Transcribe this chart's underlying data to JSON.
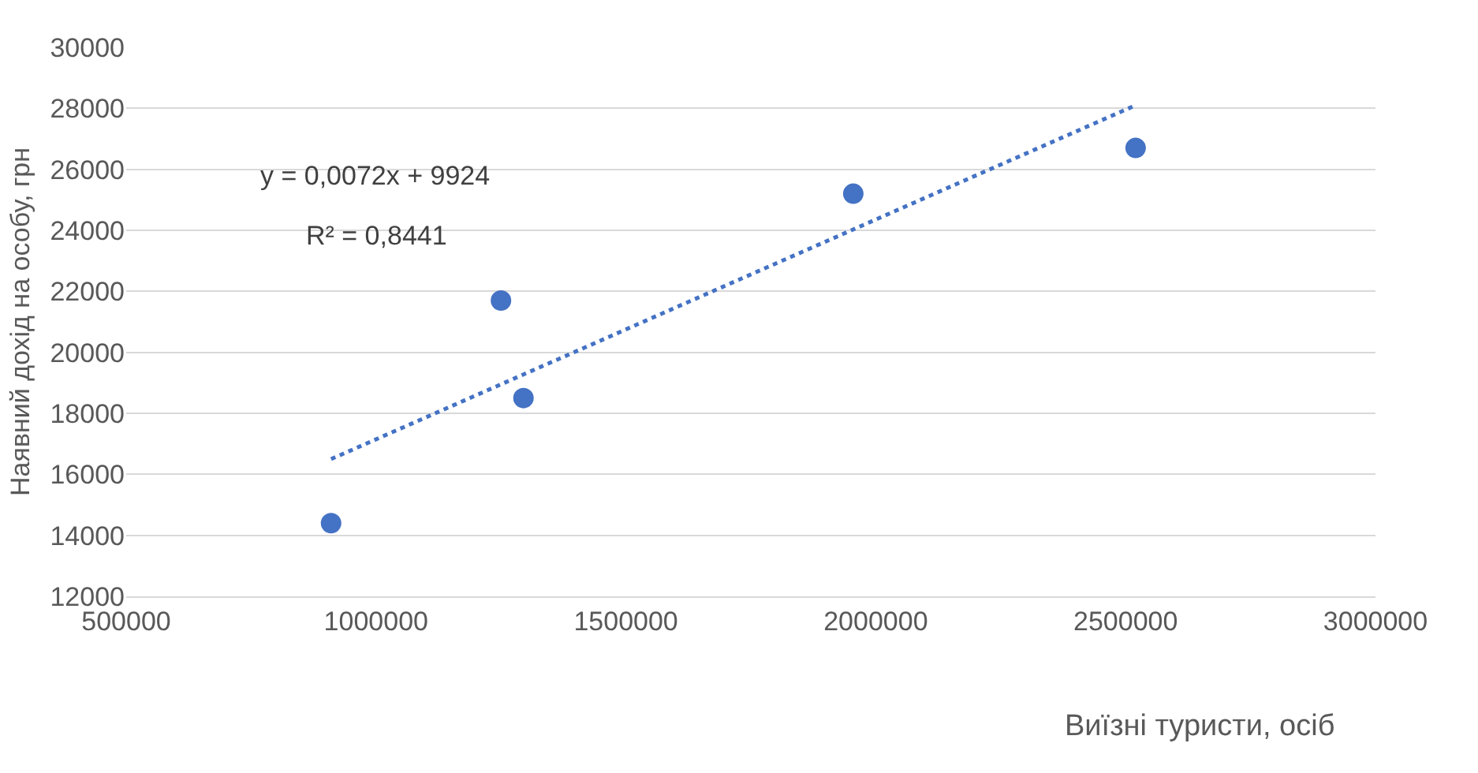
{
  "chart_data": {
    "type": "scatter",
    "xlabel": "Виїзні туристи, осіб",
    "ylabel": "Наявний дохід на особу, грн",
    "series": [
      {
        "color": "#4472c4",
        "marker": "circle",
        "x": [
          910000,
          1250000,
          1295000,
          1955000,
          2520000
        ],
        "values": [
          14400,
          21700,
          18500,
          25200,
          26700
        ]
      },
      {
        "type": "line",
        "color": "#4472c4",
        "line_style": "dotted",
        "marker": "none",
        "x": [
          910000,
          2520000
        ],
        "values": [
          16500,
          28100
        ]
      }
    ],
    "annotations": [
      "y = 0,0072x + 9924",
      "R² = 0,8441"
    ],
    "xlim": [
      500000,
      3000000
    ],
    "xticks": [
      500000,
      1000000,
      1500000,
      2000000,
      2500000,
      3000000
    ],
    "ylim": [
      12000,
      30000
    ],
    "yticks": [
      12000,
      14000,
      16000,
      18000,
      20000,
      22000,
      24000,
      26000,
      28000,
      30000
    ],
    "grid": "y"
  }
}
